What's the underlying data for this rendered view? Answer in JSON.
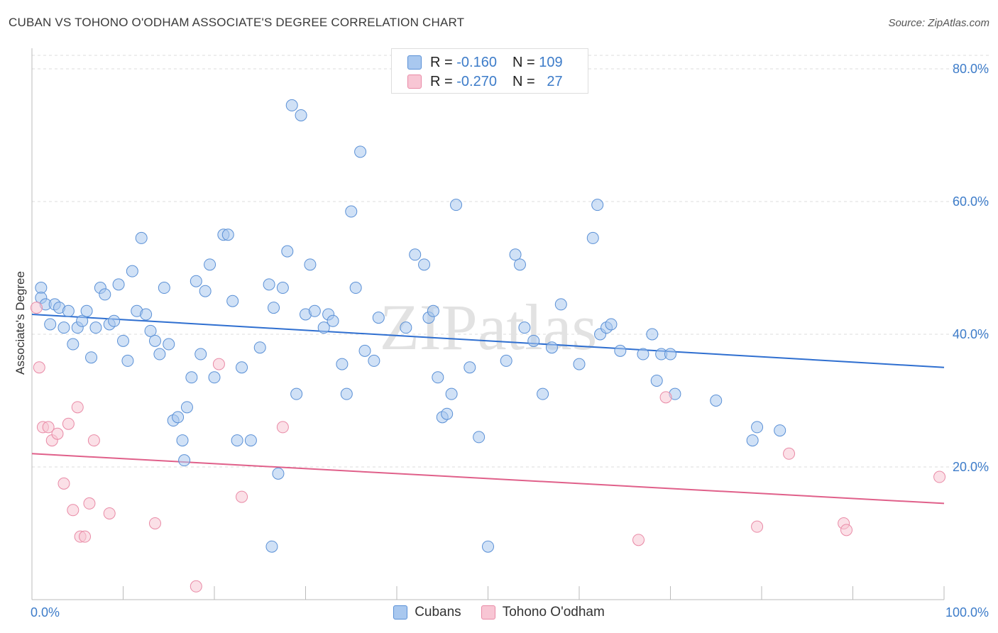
{
  "title": "CUBAN VS TOHONO O'ODHAM ASSOCIATE'S DEGREE CORRELATION CHART",
  "source": "Source: ZipAtlas.com",
  "watermark": "ZIPatlas",
  "legend": {
    "rows": [
      {
        "r_label": "R =",
        "r_value": "-0.160",
        "n_label": "N =",
        "n_value": "109",
        "color": "#a9c8ef",
        "border": "#5a90d6"
      },
      {
        "r_label": "R =",
        "r_value": "-0.270",
        "n_label": "N =",
        "n_value": "27",
        "color": "#f8c6d4",
        "border": "#e98aa6"
      }
    ]
  },
  "bottom_legend": [
    {
      "label": "Cubans",
      "color": "#a9c8ef",
      "border": "#5a90d6"
    },
    {
      "label": "Tohono O'odham",
      "color": "#f8c6d4",
      "border": "#e98aa6"
    }
  ],
  "chart_data": {
    "type": "scatter",
    "title": "CUBAN VS TOHONO O'ODHAM ASSOCIATE'S DEGREE CORRELATION CHART",
    "xlabel": "",
    "ylabel": "Associate's Degree",
    "xlim": [
      0,
      100
    ],
    "ylim": [
      0,
      80
    ],
    "x_tick_labels": [
      "0.0%",
      "100.0%"
    ],
    "y_ticks": [
      20,
      40,
      60,
      80
    ],
    "y_tick_labels": [
      "20.0%",
      "40.0%",
      "60.0%",
      "80.0%"
    ],
    "grid": true,
    "legend_position": "top-center",
    "series": [
      {
        "name": "Cubans",
        "color": "#a9c8ef",
        "stroke": "#5a90d6",
        "trend_color": "#2f6fd0",
        "trend": {
          "x": [
            0,
            100
          ],
          "y": [
            43.0,
            35.0
          ]
        },
        "points": [
          [
            1,
            47.0
          ],
          [
            1,
            45.5
          ],
          [
            1.5,
            44.5
          ],
          [
            2,
            41.5
          ],
          [
            2.5,
            44.5
          ],
          [
            3,
            44.0
          ],
          [
            3.5,
            41.0
          ],
          [
            4,
            43.5
          ],
          [
            4.5,
            38.5
          ],
          [
            5,
            41.0
          ],
          [
            5.5,
            42.0
          ],
          [
            6,
            43.5
          ],
          [
            6.5,
            36.5
          ],
          [
            7,
            41.0
          ],
          [
            7.5,
            47.0
          ],
          [
            8,
            46.0
          ],
          [
            8.5,
            41.5
          ],
          [
            9,
            42.0
          ],
          [
            9.5,
            47.5
          ],
          [
            10,
            39.0
          ],
          [
            10.5,
            36.0
          ],
          [
            11,
            49.5
          ],
          [
            11.5,
            43.5
          ],
          [
            12,
            54.5
          ],
          [
            12.5,
            43.0
          ],
          [
            13,
            40.5
          ],
          [
            13.5,
            39.0
          ],
          [
            14,
            37.0
          ],
          [
            14.5,
            47.0
          ],
          [
            15,
            38.5
          ],
          [
            15.5,
            27.0
          ],
          [
            16,
            27.5
          ],
          [
            16.5,
            24.0
          ],
          [
            16.7,
            21.0
          ],
          [
            17,
            29.0
          ],
          [
            17.5,
            33.5
          ],
          [
            18,
            48.0
          ],
          [
            18.5,
            37.0
          ],
          [
            19,
            46.5
          ],
          [
            19.5,
            50.5
          ],
          [
            20,
            33.5
          ],
          [
            21,
            55.0
          ],
          [
            21.5,
            55.0
          ],
          [
            22,
            45.0
          ],
          [
            22.5,
            24.0
          ],
          [
            23,
            35.0
          ],
          [
            24,
            24.0
          ],
          [
            25,
            38.0
          ],
          [
            26,
            47.5
          ],
          [
            26.5,
            44.0
          ],
          [
            27,
            19.0
          ],
          [
            27.5,
            47.0
          ],
          [
            28,
            52.5
          ],
          [
            28.5,
            74.5
          ],
          [
            29,
            31.0
          ],
          [
            29.5,
            73.0
          ],
          [
            30,
            43.0
          ],
          [
            30.5,
            50.5
          ],
          [
            31,
            43.5
          ],
          [
            32,
            41.0
          ],
          [
            32.5,
            43.0
          ],
          [
            33,
            42.0
          ],
          [
            34,
            35.5
          ],
          [
            34.5,
            31.0
          ],
          [
            35,
            58.5
          ],
          [
            35.5,
            47.0
          ],
          [
            36,
            67.5
          ],
          [
            36.5,
            37.5
          ],
          [
            37.5,
            36.0
          ],
          [
            38,
            42.5
          ],
          [
            41,
            41.0
          ],
          [
            42,
            52.0
          ],
          [
            43,
            50.5
          ],
          [
            43.5,
            42.5
          ],
          [
            44,
            43.5
          ],
          [
            44.5,
            33.5
          ],
          [
            45,
            27.5
          ],
          [
            45.5,
            28.0
          ],
          [
            46,
            31.0
          ],
          [
            46.5,
            59.5
          ],
          [
            48,
            35.0
          ],
          [
            49,
            24.5
          ],
          [
            50,
            8.0
          ],
          [
            52,
            36.0
          ],
          [
            53,
            52.0
          ],
          [
            53.5,
            50.5
          ],
          [
            54,
            41.0
          ],
          [
            55,
            39.0
          ],
          [
            56,
            31.0
          ],
          [
            57,
            38.0
          ],
          [
            58,
            44.5
          ],
          [
            60,
            35.5
          ],
          [
            61.5,
            54.5
          ],
          [
            62,
            59.5
          ],
          [
            62.3,
            40.0
          ],
          [
            63,
            41.0
          ],
          [
            63.5,
            41.5
          ],
          [
            64.5,
            37.5
          ],
          [
            67,
            37.0
          ],
          [
            68,
            40.0
          ],
          [
            68.5,
            33.0
          ],
          [
            69,
            37.0
          ],
          [
            70,
            37.0
          ],
          [
            70.5,
            31.0
          ],
          [
            75,
            30.0
          ],
          [
            79,
            24.0
          ],
          [
            79.5,
            26.0
          ],
          [
            82,
            25.5
          ],
          [
            26.3,
            8.0
          ]
        ]
      },
      {
        "name": "Tohono O'odham",
        "color": "#f8c6d4",
        "stroke": "#e98aa6",
        "trend_color": "#e0608a",
        "trend": {
          "x": [
            0,
            100
          ],
          "y": [
            22.0,
            14.5
          ]
        },
        "points": [
          [
            0.5,
            44.0
          ],
          [
            0.8,
            35.0
          ],
          [
            1.2,
            26.0
          ],
          [
            1.8,
            26.0
          ],
          [
            2.2,
            24.0
          ],
          [
            2.8,
            25.0
          ],
          [
            3.5,
            17.5
          ],
          [
            4,
            26.5
          ],
          [
            4.5,
            13.5
          ],
          [
            5,
            29.0
          ],
          [
            5.3,
            9.5
          ],
          [
            5.8,
            9.5
          ],
          [
            6.3,
            14.5
          ],
          [
            6.8,
            24.0
          ],
          [
            8.5,
            13.0
          ],
          [
            13.5,
            11.5
          ],
          [
            18,
            2.0
          ],
          [
            20.5,
            35.5
          ],
          [
            23,
            15.5
          ],
          [
            27.5,
            26.0
          ],
          [
            69.5,
            30.5
          ],
          [
            66.5,
            9.0
          ],
          [
            79.5,
            11.0
          ],
          [
            83,
            22.0
          ],
          [
            89,
            11.5
          ],
          [
            89.3,
            10.5
          ],
          [
            99.5,
            18.5
          ]
        ]
      }
    ]
  }
}
